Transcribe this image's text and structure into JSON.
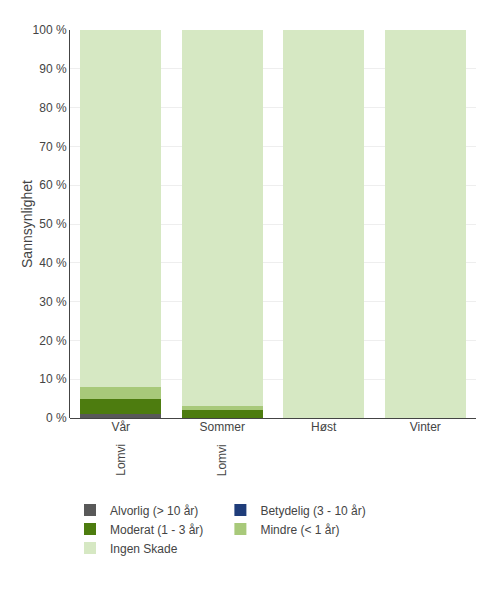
{
  "chart_data": {
    "type": "bar",
    "stacked": true,
    "categories": [
      "Vår",
      "Sommer",
      "Høst",
      "Vinter"
    ],
    "annotations": [
      {
        "text": "Lomvi",
        "x": "Vår"
      },
      {
        "text": "Lomvi",
        "x": "Sommer"
      }
    ],
    "series": [
      {
        "name": "Alvorlig (> 10 år)",
        "color": "#595959",
        "values": [
          1,
          0,
          0,
          0
        ]
      },
      {
        "name": "Betydelig (3 - 10 år)",
        "color": "#1f3d7a",
        "values": [
          0,
          0,
          0,
          0
        ]
      },
      {
        "name": "Moderat (1 - 3 år)",
        "color": "#4d7c0f",
        "values": [
          4,
          2,
          0,
          0
        ]
      },
      {
        "name": "Mindre (< 1 år)",
        "color": "#a8c97a",
        "values": [
          3,
          1,
          0,
          0
        ]
      },
      {
        "name": "Ingen Skade",
        "color": "#d6e8c3",
        "values": [
          92,
          97,
          100,
          100
        ]
      }
    ],
    "ylabel": "Sannsynlighet",
    "ylim": [
      0,
      100
    ],
    "yticks": [
      {
        "value": 0,
        "label": "0 %"
      },
      {
        "value": 10,
        "label": "10 %"
      },
      {
        "value": 20,
        "label": "20 %"
      },
      {
        "value": 30,
        "label": "30 %"
      },
      {
        "value": 40,
        "label": "40 %"
      },
      {
        "value": 50,
        "label": "50 %"
      },
      {
        "value": 60,
        "label": "60 %"
      },
      {
        "value": 70,
        "label": "70 %"
      },
      {
        "value": 80,
        "label": "80 %"
      },
      {
        "value": 90,
        "label": "90 %"
      },
      {
        "value": 100,
        "label": "100 %"
      }
    ],
    "grid": true,
    "legend": "lower left"
  }
}
